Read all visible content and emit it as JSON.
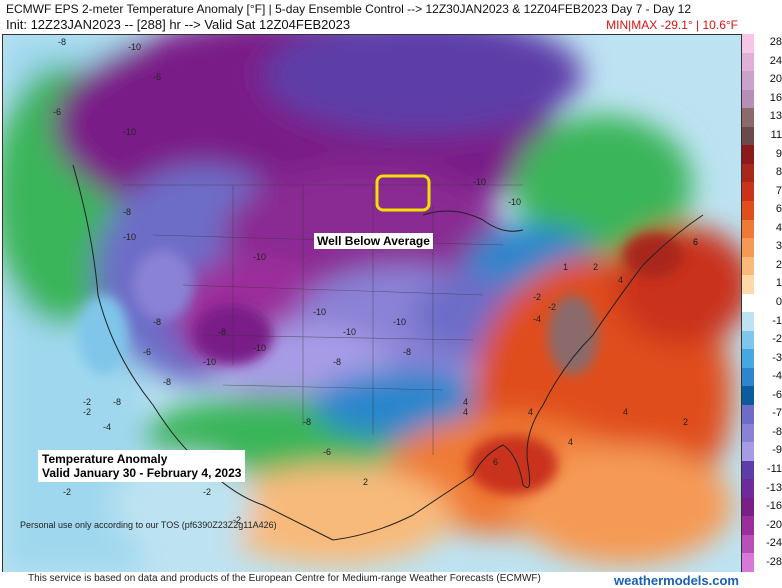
{
  "header": {
    "line1": "ECMWF EPS 2-meter Temperature Anomaly [°F] | 5-day Ensemble Control --> 12Z30JAN2023 & 12Z04FEB2023   Day 7 - Day 12",
    "line2": "Init: 12Z23JAN2023 -- [288] hr --> Valid Sat 12Z04FEB2023",
    "minmax": "MIN|MAX -29.1° | 10.6°F"
  },
  "annotations": {
    "well_below": "Well Below Average",
    "legend_title": "Temperature Anomaly",
    "legend_valid": "Valid January 30 - February 4, 2023",
    "personal_use": "Personal use only according to our TOS (pf6390Z23Z2g11A426)"
  },
  "footer": {
    "text": "This service is based on data and products of the European Centre for Medium-range Weather Forecasts (ECMWF)",
    "brand": "weathermodels.com"
  },
  "colorbar": {
    "levels": [
      "28",
      "24",
      "20",
      "16",
      "13",
      "11",
      "9",
      "8",
      "7",
      "6",
      "4",
      "3",
      "2",
      "1",
      "0",
      "-1",
      "-2",
      "-3",
      "-4",
      "-6",
      "-7",
      "-8",
      "-9",
      "-11",
      "-13",
      "-16",
      "-20",
      "-24",
      "-28"
    ],
    "colors": [
      "#f7c6e4",
      "#e0b0d8",
      "#c9a3c9",
      "#b58fb5",
      "#8a6a6a",
      "#6a4a4a",
      "#8b1b1b",
      "#a8281b",
      "#c9321b",
      "#e04e1e",
      "#ef7a35",
      "#f59a55",
      "#f8ba7a",
      "#fbd9a8",
      "#ffffff",
      "#bde3f2",
      "#7fc6ea",
      "#45a8e0",
      "#2b86cc",
      "#0c5b9a",
      "#6d6dc7",
      "#8a82d6",
      "#a79be6",
      "#5d3ea8",
      "#6e2a9b",
      "#7a1e88",
      "#9b2e9b",
      "#b94fb9",
      "#d77ad7"
    ]
  },
  "contour_labels": [
    "-8",
    "-10",
    "-6",
    "-6",
    "-10",
    "-8",
    "-10",
    "-10",
    "-8",
    "-6",
    "-10",
    "-10",
    "-8",
    "-8",
    "-10",
    "-10",
    "-10",
    "-10",
    "-8",
    "-8",
    "-8",
    "-10",
    "-8",
    "-6",
    "-2",
    "-4",
    "-2",
    "-2",
    "-2",
    "2",
    "4",
    "4",
    "4",
    "6",
    "6",
    "4",
    "2",
    "4",
    "6",
    "-2",
    "-2",
    "-4",
    "-2",
    "2",
    "-2",
    "4",
    "1"
  ]
}
